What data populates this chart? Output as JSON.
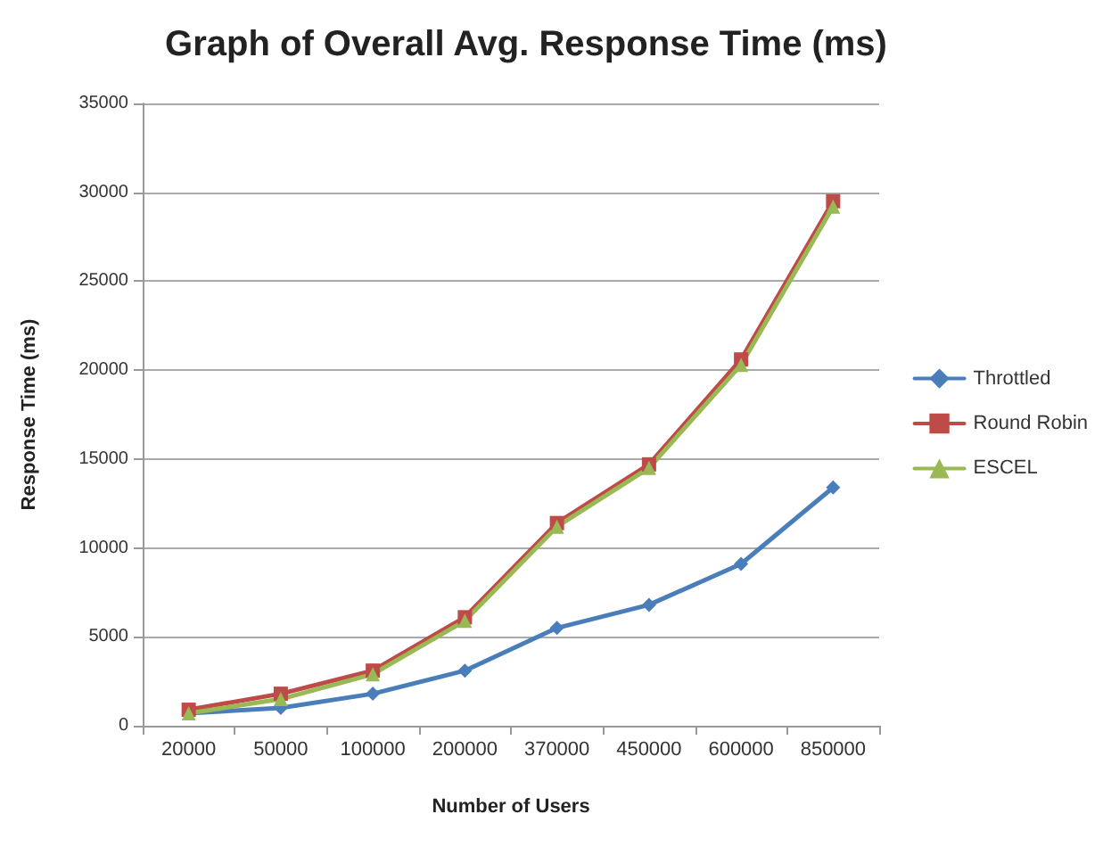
{
  "chart_data": {
    "type": "line",
    "title": "Graph of Overall Avg. Response Time (ms)",
    "xlabel": "Number of Users",
    "ylabel": "Response Time (ms)",
    "categories": [
      "20000",
      "50000",
      "100000",
      "200000",
      "370000",
      "450000",
      "600000",
      "850000"
    ],
    "series": [
      {
        "name": "Throttled",
        "color": "#4a7ebb",
        "marker": "diamond",
        "values": [
          700,
          1000,
          1800,
          3100,
          5500,
          6800,
          9100,
          13400
        ]
      },
      {
        "name": "Round Robin",
        "color": "#be4b48",
        "marker": "square",
        "values": [
          900,
          1800,
          3100,
          6100,
          11400,
          14700,
          20600,
          29500
        ]
      },
      {
        "name": "ESCEL",
        "color": "#98b954",
        "marker": "triangle",
        "values": [
          700,
          1500,
          2900,
          5900,
          11200,
          14500,
          20300,
          29200
        ]
      }
    ],
    "ylim": [
      0,
      35000
    ],
    "yticks": [
      0,
      5000,
      10000,
      15000,
      20000,
      25000,
      30000,
      35000
    ],
    "grid": "y",
    "legend": "right",
    "line_style": "solid"
  }
}
